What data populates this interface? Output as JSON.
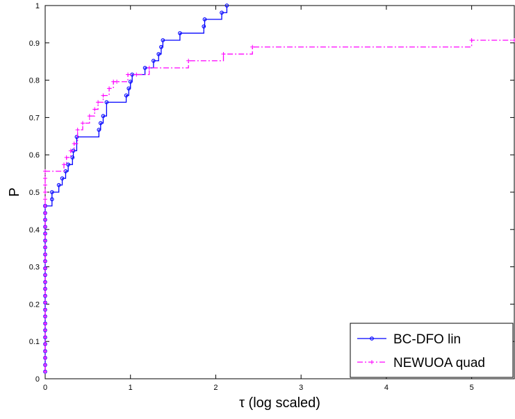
{
  "chart_data": {
    "type": "line",
    "step": true,
    "xlabel": "τ (log scaled)",
    "ylabel": "P",
    "xlim": [
      0,
      5.5
    ],
    "ylim": [
      0,
      1
    ],
    "xticks": [
      "0",
      "1",
      "2",
      "3",
      "4",
      "5"
    ],
    "yticks": [
      "0",
      "0.1",
      "0.2",
      "0.3",
      "0.4",
      "0.5",
      "0.6",
      "0.7",
      "0.8",
      "0.9",
      "1"
    ],
    "grid": false,
    "legend_position": "bottom-right",
    "series": [
      {
        "name": "BC-DFO lin",
        "color": "#0000ff",
        "line_style": "solid",
        "marker": "circle",
        "x": [
          0,
          0,
          0,
          0,
          0,
          0,
          0,
          0,
          0,
          0,
          0,
          0,
          0,
          0,
          0,
          0,
          0,
          0,
          0,
          0,
          0,
          0,
          0,
          0,
          0,
          0,
          0.08,
          0.08,
          0.16,
          0.2,
          0.24,
          0.27,
          0.32,
          0.33,
          0.37,
          0.63,
          0.65,
          0.68,
          0.72,
          0.95,
          0.98,
          1.0,
          1.02,
          1.17,
          1.27,
          1.33,
          1.36,
          1.38,
          1.58,
          1.86,
          1.87,
          2.07,
          2.13
        ],
        "y": [
          0.019,
          0.037,
          0.056,
          0.074,
          0.093,
          0.111,
          0.13,
          0.148,
          0.167,
          0.185,
          0.204,
          0.222,
          0.241,
          0.259,
          0.278,
          0.296,
          0.315,
          0.333,
          0.352,
          0.37,
          0.389,
          0.407,
          0.426,
          0.444,
          0.463,
          0.463,
          0.481,
          0.5,
          0.519,
          0.537,
          0.556,
          0.574,
          0.593,
          0.611,
          0.648,
          0.667,
          0.685,
          0.704,
          0.741,
          0.759,
          0.778,
          0.796,
          0.815,
          0.833,
          0.852,
          0.87,
          0.889,
          0.907,
          0.926,
          0.944,
          0.963,
          0.981,
          1.0
        ]
      },
      {
        "name": "NEWUOA quad",
        "color": "#ff00ff",
        "line_style": "dashdot",
        "marker": "plus",
        "x": [
          0,
          0,
          0,
          0,
          0,
          0,
          0,
          0,
          0,
          0,
          0,
          0,
          0,
          0,
          0,
          0,
          0,
          0,
          0,
          0,
          0,
          0,
          0,
          0,
          0,
          0,
          0,
          0,
          0,
          0,
          0.22,
          0.25,
          0.3,
          0.34,
          0.38,
          0.44,
          0.52,
          0.58,
          0.62,
          0.68,
          0.75,
          0.8,
          0.84,
          0.97,
          1.07,
          1.22,
          1.68,
          2.09,
          2.43,
          5.0,
          5.5
        ],
        "y": [
          0.019,
          0.037,
          0.056,
          0.074,
          0.093,
          0.111,
          0.13,
          0.148,
          0.167,
          0.185,
          0.204,
          0.222,
          0.241,
          0.259,
          0.278,
          0.296,
          0.315,
          0.333,
          0.352,
          0.37,
          0.389,
          0.407,
          0.426,
          0.444,
          0.463,
          0.481,
          0.5,
          0.519,
          0.537,
          0.556,
          0.574,
          0.593,
          0.611,
          0.63,
          0.667,
          0.685,
          0.704,
          0.722,
          0.741,
          0.759,
          0.778,
          0.796,
          0.796,
          0.815,
          0.815,
          0.833,
          0.852,
          0.87,
          0.889,
          0.907,
          0.907
        ]
      }
    ]
  }
}
